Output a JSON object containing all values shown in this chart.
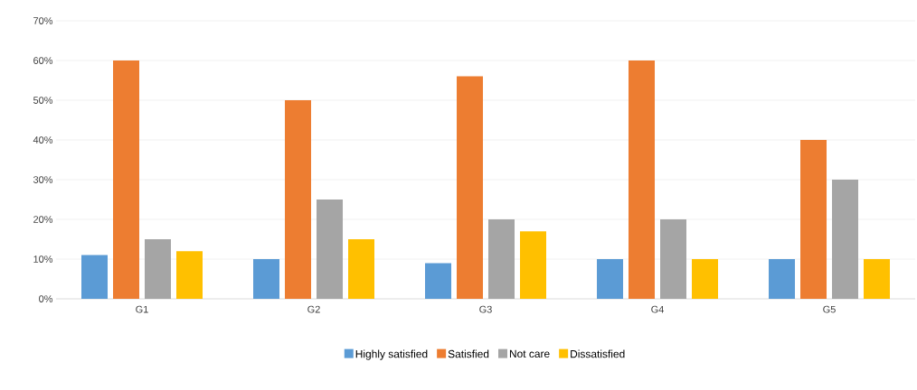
{
  "chart_data": {
    "type": "bar",
    "categories": [
      "G1",
      "G2",
      "G3",
      "G4",
      "G5"
    ],
    "series": [
      {
        "name": "Highly satisfied",
        "color": "#5b9bd5",
        "values": [
          11,
          10,
          9,
          10,
          10
        ]
      },
      {
        "name": "Satisfied",
        "color": "#ed7d31",
        "values": [
          60,
          50,
          56,
          60,
          40
        ]
      },
      {
        "name": "Not care",
        "color": "#a5a5a5",
        "values": [
          15,
          25,
          20,
          20,
          30
        ]
      },
      {
        "name": "Dissatisfied",
        "color": "#ffc000",
        "values": [
          12,
          15,
          17,
          10,
          10
        ]
      }
    ],
    "ylim": [
      0,
      70
    ],
    "yticks": [
      {
        "value": 0,
        "label": "0%"
      },
      {
        "value": 10,
        "label": "10%"
      },
      {
        "value": 20,
        "label": "20%"
      },
      {
        "value": 30,
        "label": "30%"
      },
      {
        "value": 40,
        "label": "40%"
      },
      {
        "value": 50,
        "label": "50%"
      },
      {
        "value": 60,
        "label": "60%"
      },
      {
        "value": 70,
        "label": "70%"
      }
    ],
    "grid": "y",
    "legend": "bottom"
  }
}
